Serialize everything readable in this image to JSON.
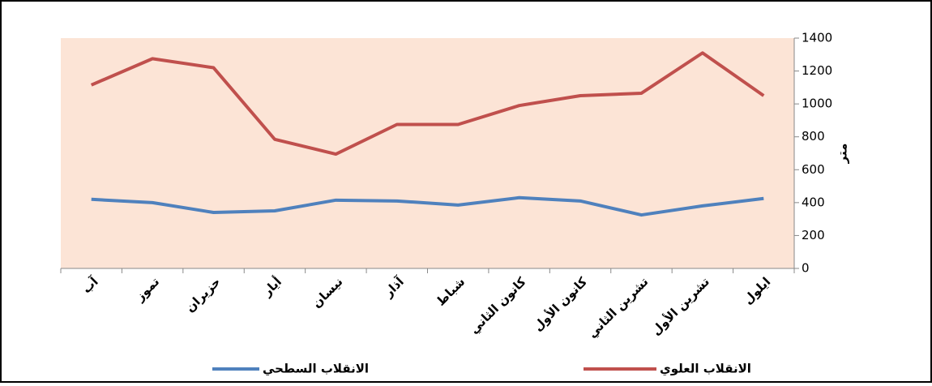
{
  "chart_data": {
    "type": "line",
    "categories": [
      "آب",
      "تموز",
      "حزيران",
      "أيار",
      "نيسان",
      "آذار",
      "شباط",
      "كانون الثاني",
      "كانون الأول",
      "تشرين الثاني",
      "تشرين الأول",
      "ايلول"
    ],
    "series": [
      {
        "name": "الانقلاب العلوي",
        "color": "#c0504d",
        "values": [
          1115,
          1275,
          1220,
          785,
          695,
          875,
          875,
          990,
          1050,
          1065,
          1310,
          1050
        ]
      },
      {
        "name": "الانقلاب السطحي",
        "color": "#4f81bd",
        "values": [
          420,
          400,
          340,
          350,
          415,
          410,
          385,
          430,
          410,
          325,
          380,
          425
        ]
      }
    ],
    "y_label": "متر",
    "ylim": [
      0,
      1400
    ],
    "yticks": [
      0,
      200,
      400,
      600,
      800,
      1000,
      1200,
      1400
    ],
    "plot_background": "#fce4d6"
  }
}
